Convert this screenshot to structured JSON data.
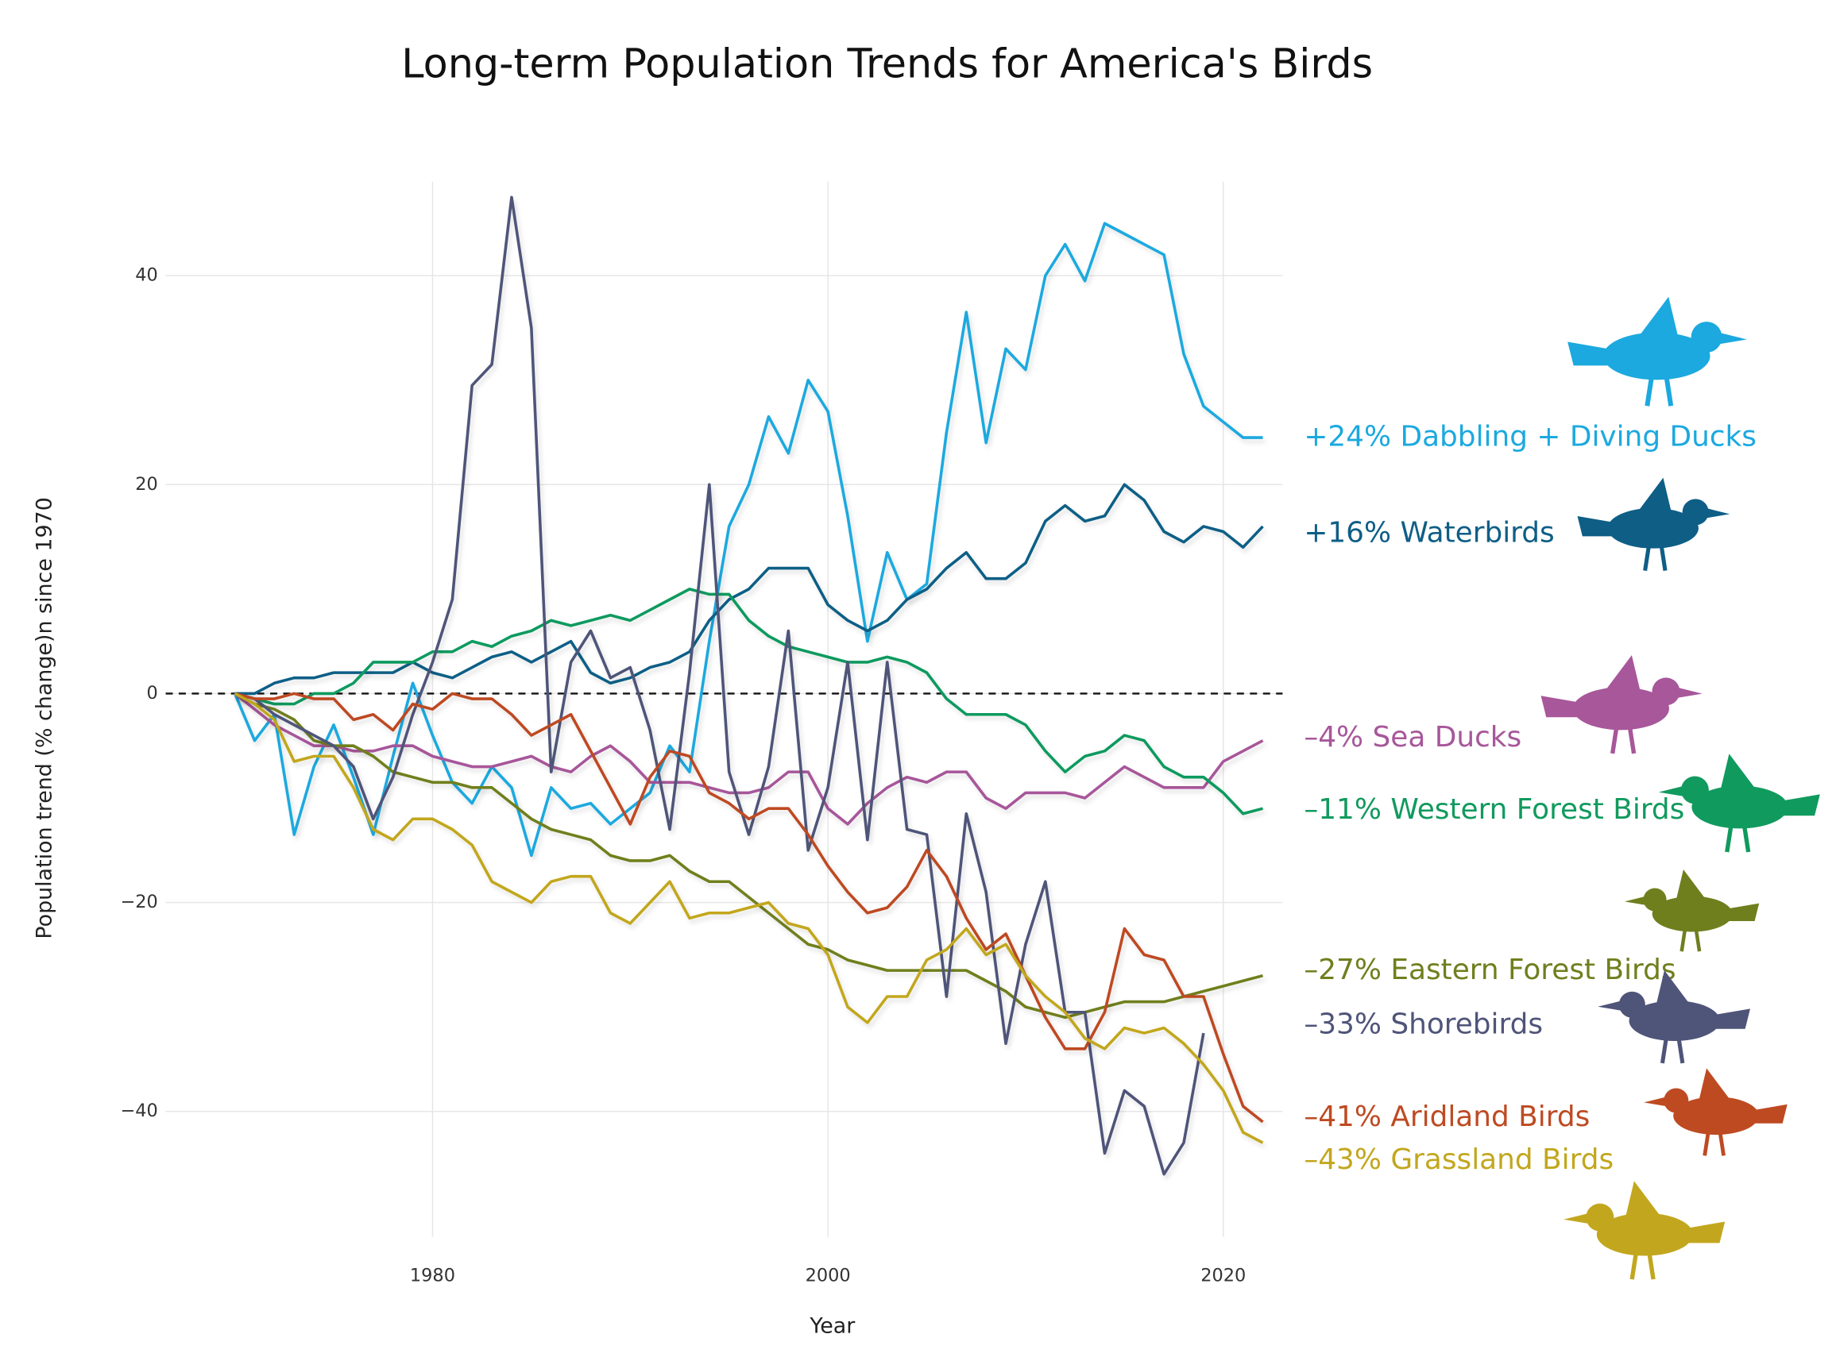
{
  "chart_data": {
    "type": "line",
    "title": "Long-term Population Trends for America's Birds",
    "x_label": "Year",
    "y_label": "Population trend (% change)n since 1970",
    "x": [
      1970,
      1971,
      1972,
      1973,
      1974,
      1975,
      1976,
      1977,
      1978,
      1979,
      1980,
      1981,
      1982,
      1983,
      1984,
      1985,
      1986,
      1987,
      1988,
      1989,
      1990,
      1991,
      1992,
      1993,
      1994,
      1995,
      1996,
      1997,
      1998,
      1999,
      2000,
      2001,
      2002,
      2003,
      2004,
      2005,
      2006,
      2007,
      2008,
      2009,
      2010,
      2011,
      2012,
      2013,
      2014,
      2015,
      2016,
      2017,
      2018,
      2019,
      2020,
      2021,
      2022
    ],
    "xlim": [
      1966.5,
      2023
    ],
    "xticks": [
      1980,
      2000,
      2020
    ],
    "ylim": [
      -52,
      49
    ],
    "yticks": [
      {
        "value": -40,
        "label": "−40"
      },
      {
        "value": -20,
        "label": "−20"
      },
      0,
      20,
      40
    ],
    "reference_line": 0,
    "grid": true,
    "series": [
      {
        "name": "+24% Dabbling + Diving Ducks",
        "color": "#1BA9DF",
        "values": [
          0,
          -4.5,
          -2,
          -13.5,
          -7,
          -3,
          -8,
          -13.5,
          -6,
          1,
          -4,
          -8.5,
          -10.5,
          -7,
          -9,
          -15.5,
          -9,
          -11,
          -10.5,
          -12.5,
          -11,
          -9.5,
          -5,
          -7.5,
          5,
          16,
          20,
          26.5,
          23,
          30,
          27,
          17,
          5,
          13.5,
          9,
          10.5,
          25,
          36.5,
          24,
          33,
          31,
          40,
          43,
          39.5,
          45,
          44,
          43,
          42,
          32.5,
          27.5,
          26,
          24.5,
          24.5
        ]
      },
      {
        "name": "+16% Waterbirds",
        "color": "#0E5E86",
        "values": [
          0,
          0,
          1,
          1.5,
          1.5,
          2,
          2,
          2,
          2,
          3,
          2,
          1.5,
          2.5,
          3.5,
          4,
          3,
          4,
          5,
          2,
          1,
          1.5,
          2.5,
          3,
          4,
          7,
          9,
          10,
          12,
          12,
          12,
          8.5,
          7,
          6,
          7,
          9,
          10,
          12,
          13.5,
          11,
          11,
          12.5,
          16.5,
          18,
          16.5,
          17,
          20,
          18.5,
          15.5,
          14.5,
          16,
          15.5,
          14,
          16
        ]
      },
      {
        "name": "–4% Sea Ducks",
        "color": "#A7579A",
        "values": [
          0,
          -1.5,
          -3,
          -4,
          -5,
          -5,
          -5.5,
          -5.5,
          -5,
          -5,
          -6,
          -6.5,
          -7,
          -7,
          -6.5,
          -6,
          -7,
          -7.5,
          -6,
          -5,
          -6.5,
          -8.5,
          -8.5,
          -8.5,
          -9,
          -9.5,
          -9.5,
          -9,
          -7.5,
          -7.5,
          -11,
          -12.5,
          -10.5,
          -9,
          -8,
          -8.5,
          -7.5,
          -7.5,
          -10,
          -11,
          -9.5,
          -9.5,
          -9.5,
          -10,
          -8.5,
          -7,
          -8,
          -9,
          -9,
          -9,
          -6.5,
          -5.5,
          -4.5
        ]
      },
      {
        "name": "–11% Western Forest Birds",
        "color": "#119A5E",
        "values": [
          0,
          -0.5,
          -1,
          -1,
          0,
          0,
          1,
          3,
          3,
          3,
          4,
          4,
          5,
          4.5,
          5.5,
          6,
          7,
          6.5,
          7,
          7.5,
          7,
          8,
          9,
          10,
          9.5,
          9.5,
          7,
          5.5,
          4.5,
          4,
          3.5,
          3,
          3,
          3.5,
          3,
          2,
          -0.5,
          -2,
          -2,
          -2,
          -3,
          -5.5,
          -7.5,
          -6,
          -5.5,
          -4,
          -4.5,
          -7,
          -8,
          -8,
          -9.5,
          -11.5,
          -11
        ]
      },
      {
        "name": "–27% Eastern Forest Birds",
        "color": "#6F7F1E",
        "values": [
          0,
          -1,
          -1.5,
          -2.5,
          -4.5,
          -5,
          -5,
          -6,
          -7.5,
          -8,
          -8.5,
          -8.5,
          -9,
          -9,
          -10.5,
          -12,
          -13,
          -13.5,
          -14,
          -15.5,
          -16,
          -16,
          -15.5,
          -17,
          -18,
          -18,
          -19.5,
          -21,
          -22.5,
          -24,
          -24.5,
          -25.5,
          -26,
          -26.5,
          -26.5,
          -26.5,
          -26.5,
          -26.5,
          -27.5,
          -28.5,
          -30,
          -30.5,
          -31,
          -30.5,
          -30,
          -29.5,
          -29.5,
          -29.5,
          -29,
          -28.5,
          -28,
          -27.5,
          -27
        ]
      },
      {
        "name": "–33% Shorebirds",
        "color": "#4F5479",
        "values": [
          0,
          -0.5,
          -2,
          -3,
          -4,
          -5,
          -7,
          -12,
          -8,
          -2,
          3,
          9,
          29.5,
          31.5,
          47.5,
          35,
          -7.5,
          3,
          6,
          1.5,
          2.5,
          -3.5,
          -13,
          2,
          20,
          -7.5,
          -13.5,
          -7,
          6,
          -15,
          -9,
          3,
          -14,
          3,
          -13,
          -13.5,
          -29,
          -11.5,
          -19,
          -33.5,
          -24,
          -18,
          -30.5,
          -30.5,
          -44,
          -38,
          -39.5,
          -46,
          -43,
          -32.5,
          null,
          null,
          null
        ]
      },
      {
        "name": "–41% Aridland Birds",
        "color": "#BE4A22",
        "values": [
          0,
          -0.5,
          -0.5,
          0,
          -0.5,
          -0.5,
          -2.5,
          -2,
          -3.5,
          -1,
          -1.5,
          0,
          -0.5,
          -0.5,
          -2,
          -4,
          -3,
          -2,
          -5.5,
          -9,
          -12.5,
          -8,
          -5.5,
          -6,
          -9.5,
          -10.5,
          -12,
          -11,
          -11,
          -13.5,
          -16.5,
          -19,
          -21,
          -20.5,
          -18.5,
          -15,
          -17.5,
          -21.5,
          -24.5,
          -23,
          -27,
          -31,
          -34,
          -34,
          -30.5,
          -22.5,
          -25,
          -25.5,
          -29,
          -29,
          -34.5,
          -39.5,
          -41
        ]
      },
      {
        "name": "–43% Grassland Birds",
        "color": "#C2A71E",
        "values": [
          0,
          -1,
          -2.5,
          -6.5,
          -6,
          -6,
          -9,
          -13,
          -14,
          -12,
          -12,
          -13,
          -14.5,
          -18,
          -19,
          -20,
          -18,
          -17.5,
          -17.5,
          -21,
          -22,
          -20,
          -18,
          -21.5,
          -21,
          -21,
          -20.5,
          -20,
          -22,
          -22.5,
          -25,
          -30,
          -31.5,
          -29,
          -29,
          -25.5,
          -24.5,
          -22.5,
          -25,
          -24,
          -27,
          -29,
          -30.5,
          -33,
          -34,
          -32,
          -32.5,
          -32,
          -33.5,
          -35.5,
          -38,
          -42,
          -43
        ]
      }
    ]
  }
}
